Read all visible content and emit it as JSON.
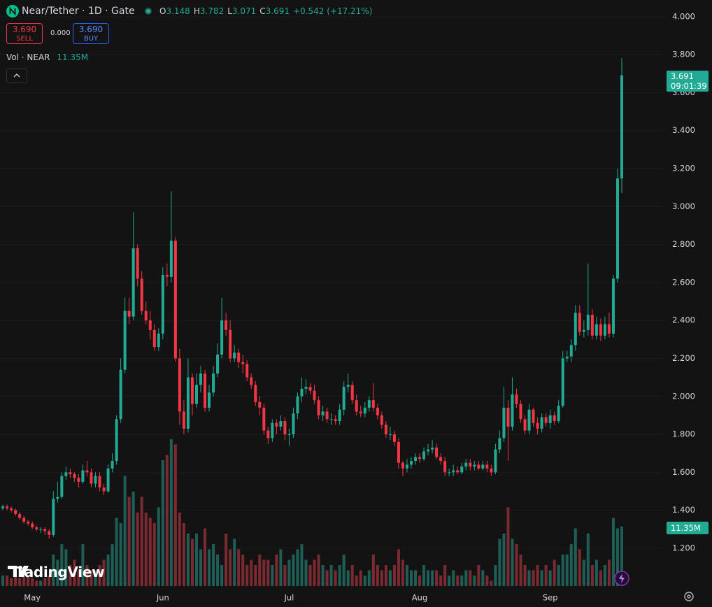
{
  "header": {
    "symbol": "Near/Tether · 1D · Gate",
    "ohlc": [
      {
        "label": "O",
        "value": "3.148"
      },
      {
        "label": "H",
        "value": "3.782"
      },
      {
        "label": "L",
        "value": "3.071"
      },
      {
        "label": "C",
        "value": "3.691"
      }
    ],
    "change": "+0.542 (+17.21%)"
  },
  "trade_panel": {
    "sell_price": "3.690",
    "sell": "SELL",
    "spread": "0.000",
    "buy_price": "3.690",
    "buy": "BUY"
  },
  "volume_legend": {
    "label": "Vol · NEAR",
    "value": "11.35M"
  },
  "price_tag": {
    "price": "3.691",
    "countdown": "09:01:39"
  },
  "watermark": "TradingView",
  "chart_data": {
    "type": "candlestick",
    "up_color": "#22ab94",
    "down_color": "#f23645",
    "volume_up_color": "#1f5e56",
    "volume_down_color": "#7b2a31",
    "grid": true,
    "ylim": [
      0.986,
      4.088
    ],
    "yticks": [
      {
        "value": 4.0,
        "label": "4.000"
      },
      {
        "value": 3.8,
        "label": "3.800"
      },
      {
        "value": 3.6,
        "label": "3.600"
      },
      {
        "value": 3.4,
        "label": "3.400"
      },
      {
        "value": 3.2,
        "label": "3.200"
      },
      {
        "value": 3.0,
        "label": "3.000"
      },
      {
        "value": 2.8,
        "label": "2.800"
      },
      {
        "value": 2.6,
        "label": "2.600"
      },
      {
        "value": 2.4,
        "label": "2.400"
      },
      {
        "value": 2.2,
        "label": "2.200"
      },
      {
        "value": 2.0,
        "label": "2.000"
      },
      {
        "value": 1.8,
        "label": "1.800"
      },
      {
        "value": 1.6,
        "label": "1.600"
      },
      {
        "value": 1.4,
        "label": "1.400"
      },
      {
        "value": 1.2,
        "label": "1.200"
      }
    ],
    "categories": [
      null,
      null,
      null,
      null,
      null,
      null,
      null,
      null,
      "May",
      null,
      null,
      null,
      null,
      null,
      null,
      null,
      null,
      null,
      null,
      null,
      null,
      null,
      null,
      null,
      null,
      null,
      null,
      null,
      null,
      null,
      null,
      null,
      null,
      null,
      null,
      null,
      null,
      null,
      null,
      "Jun",
      null,
      null,
      null,
      null,
      null,
      null,
      null,
      null,
      null,
      null,
      null,
      null,
      null,
      null,
      null,
      null,
      null,
      null,
      null,
      null,
      null,
      null,
      null,
      null,
      null,
      null,
      null,
      null,
      null,
      "Jul",
      null,
      null,
      null,
      null,
      null,
      null,
      null,
      null,
      null,
      null,
      null,
      null,
      null,
      null,
      null,
      null,
      null,
      null,
      null,
      null,
      null,
      null,
      null,
      null,
      null,
      null,
      null,
      null,
      null,
      null,
      "Aug",
      null,
      null,
      null,
      null,
      null,
      null,
      null,
      null,
      null,
      null,
      null,
      null,
      null,
      null,
      null,
      null,
      null,
      null,
      null,
      null,
      null,
      null,
      null,
      null,
      null,
      null,
      null,
      null,
      null,
      null,
      "Sep",
      null,
      null,
      null,
      null,
      null,
      null,
      null,
      null,
      null,
      null,
      null,
      null,
      null,
      null,
      null,
      null,
      null
    ],
    "open": [
      1.42,
      1.41,
      1.42,
      1.41,
      1.4,
      1.38,
      1.36,
      1.34,
      1.33,
      1.31,
      1.3,
      1.3,
      1.29,
      1.27,
      1.46,
      1.47,
      1.58,
      1.6,
      1.59,
      1.57,
      1.55,
      1.61,
      1.6,
      1.54,
      1.58,
      1.52,
      1.5,
      1.62,
      1.66,
      1.88,
      2.14,
      2.45,
      2.42,
      2.78,
      2.62,
      2.45,
      2.4,
      2.35,
      2.26,
      2.33,
      2.64,
      2.63,
      2.82,
      2.2,
      1.92,
      1.83,
      2.1,
      1.96,
      2.06,
      2.12,
      1.94,
      2.02,
      2.12,
      2.22,
      2.4,
      2.35,
      2.2,
      2.23,
      2.18,
      2.17,
      2.1,
      2.06,
      1.97,
      1.94,
      1.82,
      1.78,
      1.86,
      1.84,
      1.87,
      1.8,
      1.8,
      1.91,
      2.0,
      2.04,
      2.05,
      2.03,
      1.98,
      1.9,
      1.92,
      1.88,
      1.88,
      1.87,
      1.93,
      2.05,
      2.06,
      1.98,
      1.92,
      1.91,
      1.94,
      1.98,
      1.94,
      1.9,
      1.85,
      1.8,
      1.8,
      1.76,
      1.65,
      1.62,
      1.64,
      1.66,
      1.68,
      1.67,
      1.71,
      1.72,
      1.73,
      1.68,
      1.66,
      1.6,
      1.6,
      1.61,
      1.6,
      1.63,
      1.65,
      1.63,
      1.64,
      1.62,
      1.64,
      1.62,
      1.6,
      1.72,
      1.78,
      1.94,
      1.84,
      2.01,
      1.96,
      1.88,
      1.82,
      1.93,
      1.86,
      1.83,
      1.89,
      1.86,
      1.9,
      1.87,
      1.95,
      2.2,
      2.21,
      2.27,
      2.44,
      2.34,
      2.35,
      2.43,
      2.32,
      2.38,
      2.32,
      2.38,
      2.33,
      2.62,
      3.148
    ],
    "high": [
      1.44,
      1.43,
      1.43,
      1.42,
      1.41,
      1.39,
      1.37,
      1.35,
      1.34,
      1.32,
      1.31,
      1.31,
      1.3,
      1.5,
      1.55,
      1.6,
      1.63,
      1.62,
      1.6,
      1.59,
      1.64,
      1.66,
      1.62,
      1.6,
      1.6,
      1.54,
      1.64,
      1.7,
      1.9,
      2.2,
      2.52,
      2.52,
      2.97,
      2.8,
      2.66,
      2.5,
      2.45,
      2.38,
      2.36,
      2.68,
      2.7,
      3.08,
      2.84,
      2.25,
      1.98,
      2.2,
      2.12,
      2.12,
      2.16,
      2.14,
      2.06,
      2.16,
      2.28,
      2.52,
      2.44,
      2.4,
      2.27,
      2.25,
      2.22,
      2.19,
      2.12,
      2.08,
      2.0,
      1.96,
      1.84,
      1.88,
      1.88,
      1.9,
      1.89,
      1.83,
      1.94,
      2.02,
      2.1,
      2.09,
      2.07,
      2.06,
      2.0,
      1.95,
      1.94,
      1.91,
      1.9,
      1.96,
      2.08,
      2.12,
      2.08,
      2.01,
      1.95,
      1.97,
      2.0,
      2.07,
      1.96,
      1.92,
      1.87,
      1.84,
      1.82,
      1.78,
      1.66,
      1.67,
      1.68,
      1.7,
      1.7,
      1.73,
      1.75,
      1.77,
      1.75,
      1.7,
      1.68,
      1.62,
      1.64,
      1.63,
      1.65,
      1.67,
      1.67,
      1.66,
      1.66,
      1.66,
      1.66,
      1.64,
      1.75,
      1.82,
      2.05,
      1.98,
      2.1,
      2.04,
      1.98,
      1.9,
      1.96,
      1.94,
      1.89,
      1.91,
      1.91,
      1.93,
      1.92,
      1.98,
      2.24,
      2.24,
      2.3,
      2.48,
      2.48,
      2.4,
      2.7,
      2.46,
      2.42,
      2.41,
      2.42,
      2.44,
      2.64,
      3.2,
      3.782
    ],
    "low": [
      1.4,
      1.4,
      1.4,
      1.39,
      1.37,
      1.35,
      1.33,
      1.32,
      1.3,
      1.29,
      1.28,
      1.27,
      1.25,
      1.26,
      1.44,
      1.46,
      1.56,
      1.57,
      1.55,
      1.52,
      1.54,
      1.58,
      1.52,
      1.52,
      1.5,
      1.48,
      1.49,
      1.6,
      1.64,
      1.86,
      2.12,
      2.38,
      2.4,
      2.58,
      2.43,
      2.38,
      2.3,
      2.24,
      2.24,
      2.3,
      2.58,
      2.6,
      2.18,
      1.85,
      1.8,
      1.81,
      1.9,
      1.94,
      2.02,
      1.92,
      1.92,
      2.0,
      2.1,
      2.2,
      2.32,
      2.18,
      2.18,
      2.15,
      2.12,
      2.08,
      2.04,
      1.95,
      1.9,
      1.8,
      1.75,
      1.76,
      1.8,
      1.82,
      1.77,
      1.74,
      1.78,
      1.88,
      1.97,
      2.01,
      2.01,
      1.96,
      1.88,
      1.87,
      1.86,
      1.85,
      1.85,
      1.85,
      1.9,
      2.02,
      1.96,
      1.9,
      1.89,
      1.89,
      1.92,
      1.92,
      1.88,
      1.83,
      1.78,
      1.77,
      1.74,
      1.62,
      1.58,
      1.6,
      1.62,
      1.64,
      1.65,
      1.66,
      1.69,
      1.7,
      1.67,
      1.64,
      1.58,
      1.58,
      1.58,
      1.59,
      1.59,
      1.61,
      1.61,
      1.61,
      1.61,
      1.61,
      1.6,
      1.58,
      1.59,
      1.7,
      1.76,
      1.66,
      1.82,
      1.94,
      1.86,
      1.8,
      1.8,
      1.84,
      1.8,
      1.81,
      1.84,
      1.83,
      1.85,
      1.86,
      1.94,
      2.18,
      2.18,
      2.24,
      2.32,
      2.31,
      2.32,
      2.3,
      2.3,
      2.29,
      2.3,
      2.31,
      2.31,
      2.6,
      3.071
    ],
    "close": [
      1.41,
      1.42,
      1.41,
      1.4,
      1.38,
      1.36,
      1.34,
      1.33,
      1.31,
      1.3,
      1.3,
      1.29,
      1.27,
      1.46,
      1.47,
      1.58,
      1.6,
      1.59,
      1.57,
      1.55,
      1.61,
      1.6,
      1.54,
      1.58,
      1.52,
      1.5,
      1.62,
      1.66,
      1.88,
      2.14,
      2.45,
      2.42,
      2.78,
      2.62,
      2.45,
      2.4,
      2.35,
      2.26,
      2.33,
      2.64,
      2.63,
      2.82,
      2.2,
      1.92,
      1.83,
      2.1,
      1.96,
      2.06,
      2.12,
      1.94,
      2.02,
      2.12,
      2.22,
      2.4,
      2.35,
      2.2,
      2.23,
      2.18,
      2.17,
      2.1,
      2.06,
      1.97,
      1.94,
      1.82,
      1.78,
      1.86,
      1.84,
      1.87,
      1.8,
      1.8,
      1.91,
      2.0,
      2.04,
      2.05,
      2.03,
      1.98,
      1.9,
      1.92,
      1.88,
      1.88,
      1.87,
      1.93,
      2.05,
      2.06,
      1.98,
      1.92,
      1.91,
      1.94,
      1.98,
      1.94,
      1.9,
      1.85,
      1.8,
      1.8,
      1.76,
      1.65,
      1.62,
      1.64,
      1.66,
      1.68,
      1.67,
      1.71,
      1.72,
      1.73,
      1.68,
      1.66,
      1.6,
      1.6,
      1.61,
      1.6,
      1.63,
      1.65,
      1.63,
      1.64,
      1.62,
      1.64,
      1.62,
      1.6,
      1.72,
      1.78,
      1.94,
      1.84,
      2.01,
      1.96,
      1.88,
      1.82,
      1.93,
      1.86,
      1.83,
      1.89,
      1.86,
      1.9,
      1.87,
      1.95,
      2.2,
      2.21,
      2.27,
      2.44,
      2.34,
      2.35,
      2.43,
      2.32,
      2.38,
      2.32,
      2.38,
      2.33,
      2.62,
      3.148,
      3.691
    ],
    "volume": [
      3,
      2,
      2,
      1.5,
      2,
      1.5,
      2,
      2,
      1.5,
      1,
      1,
      1.5,
      2,
      6,
      5,
      8,
      7,
      4,
      5,
      3,
      8,
      4,
      3,
      3,
      4,
      5,
      6,
      8,
      13,
      12,
      21,
      17,
      18,
      14,
      17,
      14,
      13,
      12,
      15,
      24,
      25,
      28,
      27,
      14,
      12,
      10,
      9,
      10,
      7,
      11,
      7,
      8,
      6,
      4,
      10,
      7,
      9,
      7,
      6,
      4,
      5,
      4,
      6,
      5,
      5,
      4,
      6,
      7,
      4,
      5,
      6,
      7,
      8,
      5,
      4,
      5,
      6,
      4,
      3,
      4,
      3,
      4,
      6,
      3,
      4,
      2,
      3,
      2,
      3,
      6,
      4,
      3,
      4,
      3,
      4,
      7,
      5,
      4,
      3,
      3,
      2,
      4,
      3,
      3,
      3,
      2,
      4,
      2,
      3,
      2,
      2,
      3,
      3,
      2,
      4,
      3,
      2,
      1,
      4,
      9,
      10,
      15,
      9,
      8,
      6,
      4,
      3,
      3,
      4,
      3,
      4,
      3,
      5,
      4,
      6,
      6,
      8,
      11,
      7,
      5,
      10,
      4,
      5,
      3,
      4,
      5,
      13,
      11,
      11.35
    ]
  }
}
